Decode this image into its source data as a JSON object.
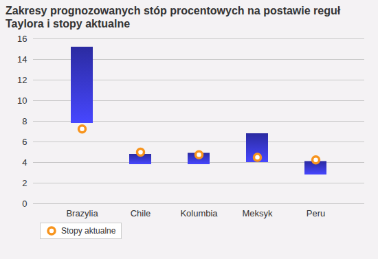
{
  "chart_data": {
    "type": "range_bar",
    "title": "Zakresy prognozowanych stóp procentowych na postawie reguł Taylora i stopy aktualne",
    "categories": [
      "Brazylia",
      "Chile",
      "Kolumbia",
      "Meksyk",
      "Peru"
    ],
    "low": [
      7.8,
      3.8,
      3.8,
      4.0,
      2.8
    ],
    "high": [
      15.2,
      4.8,
      4.9,
      6.8,
      4.1
    ],
    "color": "#3535c8",
    "series": [
      {
        "name": "Stopy aktualne",
        "type": "scatter",
        "marker": "circle",
        "color": "#f7941d",
        "values": [
          7.25,
          5.0,
          4.75,
          4.5,
          4.25
        ]
      }
    ],
    "ylim": [
      0,
      16
    ],
    "yticks": [
      0,
      2,
      4,
      6,
      8,
      10,
      12,
      14,
      16
    ],
    "grid": true,
    "legend": "bottom-left"
  }
}
